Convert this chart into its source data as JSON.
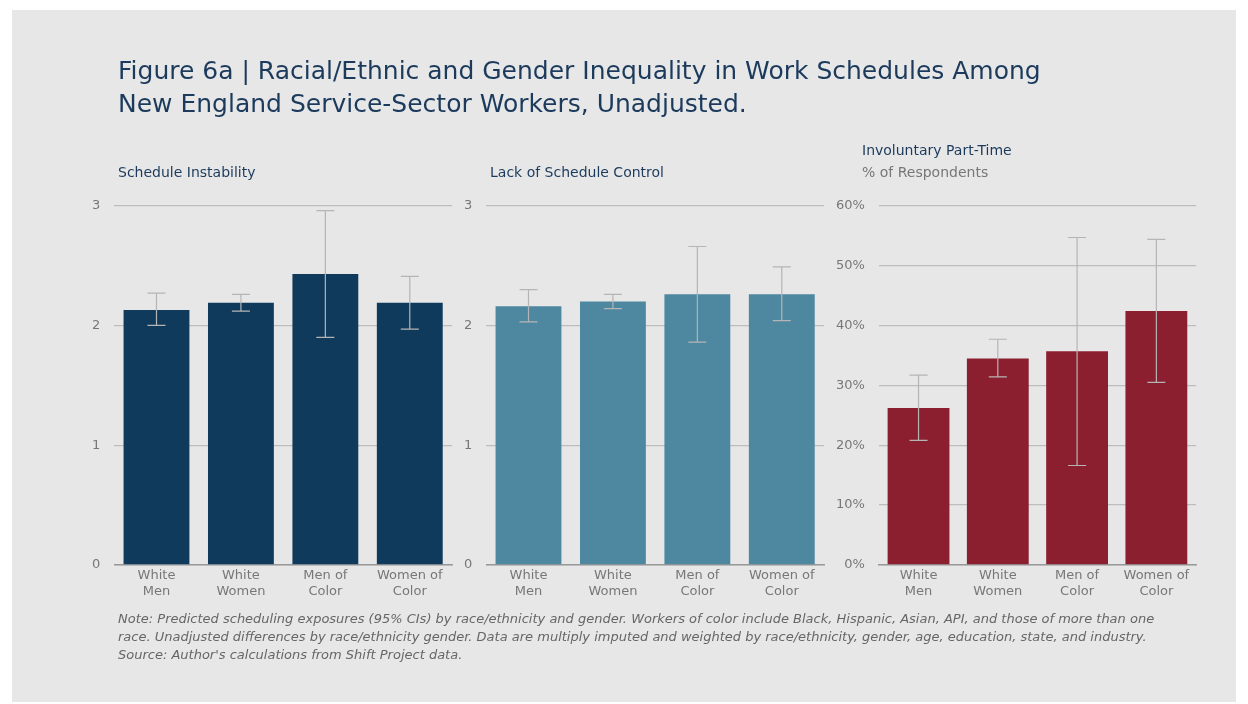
{
  "chart_data": [
    {
      "type": "other",
      "title": "Figure 6a | Racial/Ethnic and Gender Inequality in Work Schedules Among New England Service-Sector Workers, Unadjusted."
    },
    {
      "type": "bar",
      "title": "Schedule Instability",
      "categories": [
        "White Men",
        "White Women",
        "Men of Color",
        "Women of Color"
      ],
      "values": [
        2.13,
        2.19,
        2.43,
        2.19
      ],
      "color": "#0f3a5c",
      "errors": [
        [
          2.0,
          2.27
        ],
        [
          2.12,
          2.26
        ],
        [
          1.9,
          2.96
        ],
        [
          1.97,
          2.41
        ]
      ],
      "ylim": [
        0,
        3
      ],
      "yticks": [
        0,
        1,
        2,
        3
      ],
      "grid": "y",
      "legend": false
    },
    {
      "type": "bar",
      "title": "Lack of Schedule Control",
      "categories": [
        "White Men",
        "White Women",
        "Men of Color",
        "Women of Color"
      ],
      "values": [
        2.16,
        2.2,
        2.26,
        2.26
      ],
      "color": "#4e87a0",
      "errors": [
        [
          2.03,
          2.3
        ],
        [
          2.14,
          2.26
        ],
        [
          1.86,
          2.66
        ],
        [
          2.04,
          2.49
        ]
      ],
      "ylim": [
        0,
        3
      ],
      "yticks": [
        0,
        1,
        2,
        3
      ],
      "grid": "y",
      "legend": false
    },
    {
      "type": "bar",
      "title": "Involuntary Part-Time",
      "ylabel": "% of Respondents",
      "categories": [
        "White Men",
        "White Women",
        "Men of Color",
        "Women of Color"
      ],
      "values": [
        26.2,
        34.5,
        35.7,
        42.4
      ],
      "color": "#8b1f2f",
      "errors": [
        [
          20.8,
          31.7
        ],
        [
          31.4,
          37.7
        ],
        [
          16.6,
          54.7
        ],
        [
          30.5,
          54.4
        ]
      ],
      "ylim": [
        0,
        60
      ],
      "yticks": [
        {
          "value": 0,
          "label": "0%"
        },
        {
          "value": 10,
          "label": "10%"
        },
        {
          "value": 20,
          "label": "20%"
        },
        {
          "value": 30,
          "label": "30%"
        },
        {
          "value": 40,
          "label": "40%"
        },
        {
          "value": 50,
          "label": "50%"
        },
        {
          "value": 60,
          "label": "60%"
        }
      ],
      "grid": "y",
      "legend": false,
      "annotations": [
        "Note: Predicted scheduling exposures (95% CIs) by race/ethnicity and gender. Workers of color include Black, Hispanic, Asian, API, and those of more than one race. Unadjusted differences by race/ethnicity gender. Data are multiply imputed and weighted by race/ethnicity, gender, age, education, state, and industry.",
        "Source: Author's calculations from Shift Project data."
      ]
    }
  ]
}
